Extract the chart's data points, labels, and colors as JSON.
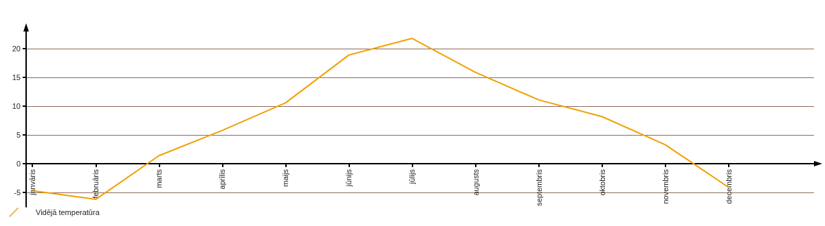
{
  "chart_data": {
    "type": "line",
    "categories": [
      "janvāris",
      "februāris",
      "marts",
      "aprīlis",
      "maijs",
      "jūnijs",
      "jūlijs",
      "augusts",
      "septembris",
      "oktobris",
      "novembris",
      "decembris"
    ],
    "series": [
      {
        "name": "Vidējā temperatūra",
        "color": "#f0a000",
        "values": [
          -4.7,
          -6.2,
          1.4,
          5.8,
          10.6,
          18.9,
          21.8,
          15.9,
          11.1,
          8.2,
          3.3,
          -4.1
        ]
      }
    ],
    "ylim": [
      -7.5,
      23
    ],
    "yticks": [
      -5,
      0,
      5,
      10,
      15,
      20
    ],
    "grid": "y",
    "legend": "bottom left",
    "marker": "none",
    "line_style": "solid"
  }
}
